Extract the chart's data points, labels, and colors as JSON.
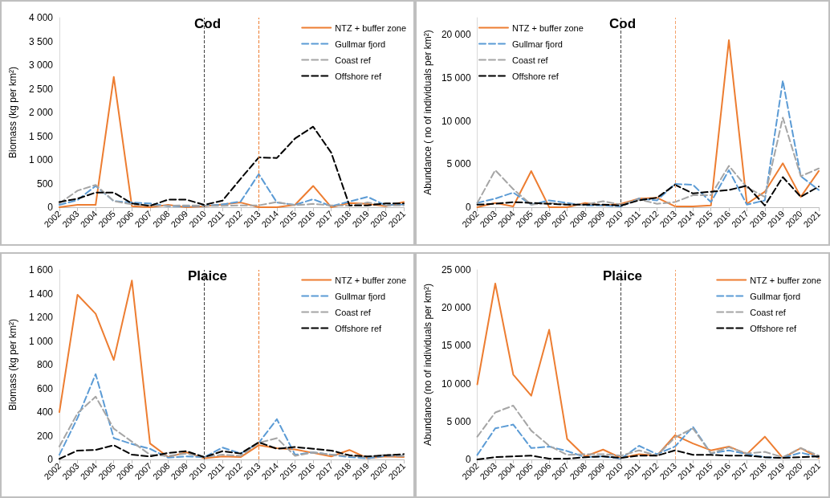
{
  "chart_data": [
    {
      "type": "line",
      "title": "Cod",
      "ylabel": "Biomass (kg per km²)",
      "categories": [
        "2002",
        "2003",
        "2004",
        "2005",
        "2006",
        "2007",
        "2008",
        "2009",
        "2010",
        "2011",
        "2012",
        "2013",
        "2014",
        "2015",
        "2016",
        "2017",
        "2018",
        "2019",
        "2020",
        "2021"
      ],
      "ylim": [
        0,
        4000
      ],
      "yticks": [
        0,
        500,
        {
          "value": 1000,
          "label": "1 000"
        },
        {
          "value": 1500,
          "label": "1 500"
        },
        {
          "value": 2000,
          "label": "2 000"
        },
        {
          "value": 2500,
          "label": "2 500"
        },
        {
          "value": 3000,
          "label": "3 000"
        },
        {
          "value": 3500,
          "label": "3 500"
        },
        {
          "value": 4000,
          "label": "4 000"
        }
      ],
      "grid": false,
      "legend": "top right",
      "marker": "none",
      "series": [
        {
          "name": "NTZ + buffer zone",
          "color": "#ed7d31",
          "line_style": "solid",
          "values": [
            0,
            50,
            50,
            2750,
            20,
            0,
            50,
            0,
            20,
            60,
            100,
            0,
            0,
            50,
            450,
            0,
            90,
            70,
            20,
            110
          ]
        },
        {
          "name": "Gullmar fjord",
          "color": "#5b9bd5",
          "line_style": "dashed",
          "values": [
            50,
            150,
            450,
            130,
            100,
            80,
            20,
            20,
            30,
            60,
            120,
            700,
            100,
            50,
            170,
            20,
            120,
            220,
            40,
            60
          ]
        },
        {
          "name": "Coast ref",
          "color": "#a5a5a5",
          "line_style": "dashed",
          "values": [
            80,
            350,
            470,
            130,
            60,
            40,
            30,
            40,
            30,
            30,
            40,
            40,
            110,
            40,
            70,
            40,
            30,
            100,
            40,
            40
          ]
        },
        {
          "name": "Offshore ref",
          "color": "#000000",
          "line_style": "dashed",
          "values": [
            110,
            180,
            310,
            310,
            80,
            30,
            160,
            160,
            50,
            140,
            600,
            1050,
            1040,
            1450,
            1700,
            1150,
            40,
            40,
            80,
            80
          ]
        }
      ],
      "ref_lines": [
        {
          "axis": "x",
          "value": "2010",
          "color": "#404040",
          "line_style": "dashed"
        },
        {
          "axis": "x",
          "value": "2013",
          "color": "#ed7d31",
          "line_style": "dashed"
        }
      ]
    },
    {
      "type": "line",
      "title": "Cod",
      "ylabel": "Abundance ( no of individuals per km²)",
      "categories": [
        "2002",
        "2003",
        "2004",
        "2005",
        "2006",
        "2007",
        "2008",
        "2009",
        "2010",
        "2011",
        "2012",
        "2013",
        "2014",
        "2015",
        "2016",
        "2017",
        "2018",
        "2019",
        "2020",
        "2021"
      ],
      "ylim": [
        0,
        22000
      ],
      "yticks": [
        0,
        {
          "value": 5000,
          "label": "5 000"
        },
        {
          "value": 10000,
          "label": "10 000"
        },
        {
          "value": 15000,
          "label": "15 000"
        },
        {
          "value": 20000,
          "label": "20 000"
        }
      ],
      "grid": false,
      "legend": "top left",
      "marker": "none",
      "series": [
        {
          "name": "NTZ + buffer zone",
          "color": "#ed7d31",
          "line_style": "solid",
          "values": [
            0,
            500,
            100,
            4200,
            0,
            0,
            500,
            200,
            400,
            1000,
            1100,
            100,
            100,
            200,
            19400,
            400,
            1800,
            5100,
            1200,
            4200
          ]
        },
        {
          "name": "Gullmar fjord",
          "color": "#5b9bd5",
          "line_style": "dashed",
          "values": [
            500,
            1000,
            1700,
            300,
            800,
            500,
            200,
            200,
            100,
            1000,
            800,
            2700,
            2600,
            600,
            4300,
            300,
            800,
            14700,
            3600,
            2000
          ]
        },
        {
          "name": "Coast ref",
          "color": "#a5a5a5",
          "line_style": "dashed",
          "values": [
            500,
            4300,
            2100,
            300,
            500,
            300,
            300,
            700,
            300,
            900,
            400,
            600,
            1400,
            1400,
            4800,
            2300,
            1200,
            10400,
            3600,
            4500
          ]
        },
        {
          "name": "Offshore ref",
          "color": "#000000",
          "line_style": "dashed",
          "values": [
            300,
            400,
            600,
            500,
            400,
            300,
            300,
            300,
            200,
            800,
            1100,
            2600,
            1600,
            1800,
            2000,
            2500,
            200,
            3500,
            1200,
            2400
          ]
        }
      ],
      "ref_lines": [
        {
          "axis": "x",
          "value": "2010",
          "color": "#404040",
          "line_style": "dashed"
        },
        {
          "axis": "x",
          "value": "2013",
          "color": "#f4a46e",
          "line_style": "dashed"
        }
      ]
    },
    {
      "type": "line",
      "title": "Plaice",
      "ylabel": "Biomass (kg per km²)",
      "categories": [
        "2002",
        "2003",
        "2004",
        "2005",
        "2006",
        "2007",
        "2008",
        "2009",
        "2010",
        "2011",
        "2012",
        "2013",
        "2014",
        "2015",
        "2016",
        "2017",
        "2018",
        "2019",
        "2020",
        "2021"
      ],
      "ylim": [
        0,
        1600
      ],
      "yticks": [
        0,
        200,
        400,
        600,
        800,
        {
          "value": 1000,
          "label": "1 000"
        },
        {
          "value": 1200,
          "label": "1 200"
        },
        {
          "value": 1400,
          "label": "1 400"
        },
        {
          "value": 1600,
          "label": "1 600"
        }
      ],
      "grid": false,
      "legend": "top right",
      "marker": "none",
      "series": [
        {
          "name": "NTZ + buffer zone",
          "color": "#ed7d31",
          "line_style": "solid",
          "values": [
            400,
            1390,
            1230,
            840,
            1510,
            135,
            20,
            60,
            10,
            25,
            20,
            120,
            95,
            85,
            55,
            25,
            80,
            10,
            25,
            20
          ]
        },
        {
          "name": "Gullmar fjord",
          "color": "#5b9bd5",
          "line_style": "dashed",
          "values": [
            40,
            350,
            720,
            180,
            130,
            90,
            15,
            25,
            20,
            100,
            50,
            140,
            340,
            40,
            60,
            40,
            20,
            10,
            30,
            30
          ]
        },
        {
          "name": "Coast ref",
          "color": "#a5a5a5",
          "line_style": "dashed",
          "values": [
            110,
            390,
            530,
            260,
            150,
            40,
            30,
            50,
            20,
            40,
            30,
            140,
            180,
            30,
            60,
            40,
            30,
            20,
            40,
            30
          ]
        },
        {
          "name": "Offshore ref",
          "color": "#000000",
          "line_style": "dashed",
          "values": [
            5,
            75,
            80,
            120,
            40,
            25,
            55,
            70,
            20,
            70,
            50,
            145,
            90,
            105,
            90,
            75,
            35,
            25,
            35,
            45
          ]
        }
      ],
      "ref_lines": [
        {
          "axis": "x",
          "value": "2010",
          "color": "#404040",
          "line_style": "dashed"
        },
        {
          "axis": "x",
          "value": "2013",
          "color": "#ed7d31",
          "line_style": "dashed"
        }
      ]
    },
    {
      "type": "line",
      "title": "Plaice",
      "ylabel": "Abundance (no of individuals per km²)",
      "categories": [
        "2002",
        "2003",
        "2004",
        "2005",
        "2006",
        "2007",
        "2008",
        "2009",
        "2010",
        "2011",
        "2012",
        "2013",
        "2014",
        "2015",
        "2016",
        "2017",
        "2018",
        "2019",
        "2020",
        "2021"
      ],
      "ylim": [
        0,
        25000
      ],
      "yticks": [
        0,
        {
          "value": 5000,
          "label": "5 000"
        },
        {
          "value": 10000,
          "label": "10 000"
        },
        {
          "value": 15000,
          "label": "15 000"
        },
        {
          "value": 20000,
          "label": "20 000"
        },
        {
          "value": 25000,
          "label": "25 000"
        }
      ],
      "grid": false,
      "legend": "top right",
      "marker": "none",
      "series": [
        {
          "name": "NTZ + buffer zone",
          "color": "#ed7d31",
          "line_style": "solid",
          "values": [
            9900,
            23200,
            11200,
            8400,
            17100,
            2700,
            400,
            1300,
            200,
            700,
            500,
            3200,
            2100,
            1200,
            1700,
            700,
            3000,
            200,
            1500,
            200
          ]
        },
        {
          "name": "Gullmar fjord",
          "color": "#5b9bd5",
          "line_style": "dashed",
          "values": [
            600,
            4100,
            4600,
            1500,
            1700,
            1100,
            300,
            400,
            100,
            1800,
            700,
            1700,
            4300,
            800,
            1200,
            700,
            300,
            200,
            900,
            300
          ]
        },
        {
          "name": "Coast ref",
          "color": "#a5a5a5",
          "line_style": "dashed",
          "values": [
            3000,
            6200,
            7100,
            3800,
            1800,
            600,
            700,
            700,
            500,
            1200,
            500,
            2900,
            4100,
            800,
            1600,
            800,
            1000,
            300,
            1500,
            500
          ]
        },
        {
          "name": "Offshore ref",
          "color": "#000000",
          "line_style": "dashed",
          "values": [
            0,
            300,
            400,
            500,
            100,
            100,
            300,
            400,
            200,
            500,
            500,
            1200,
            600,
            600,
            500,
            500,
            300,
            200,
            300,
            400
          ]
        }
      ],
      "ref_lines": [
        {
          "axis": "x",
          "value": "2010",
          "color": "#404040",
          "line_style": "dashed"
        },
        {
          "axis": "x",
          "value": "2013",
          "color": "#f4a46e",
          "line_style": "dashed"
        }
      ]
    }
  ]
}
